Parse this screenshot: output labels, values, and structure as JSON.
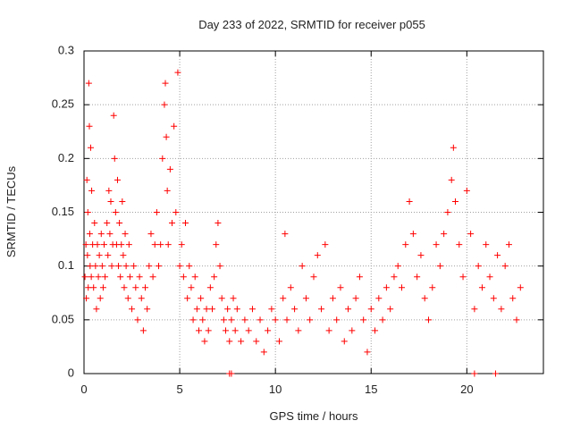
{
  "chart_data": {
    "type": "scatter",
    "title": "Day 233 of 2022, SRMTID for receiver p055",
    "xlabel": "GPS time / hours",
    "ylabel": "SRMTID / TECUs",
    "xlim": [
      0,
      24
    ],
    "ylim": [
      0,
      0.3
    ],
    "x_ticks": [
      0,
      5,
      10,
      15,
      20
    ],
    "x_tick_labels": [
      "0",
      "5",
      "10",
      "15",
      "20"
    ],
    "y_ticks": [
      0,
      0.05,
      0.1,
      0.15,
      0.2,
      0.25,
      0.3
    ],
    "y_tick_labels": [
      "0",
      "0.05",
      "0.1",
      "0.15",
      "0.2",
      "0.25",
      "0.3"
    ],
    "grid": true,
    "marker": "+",
    "color": "#ff0000",
    "series": [
      {
        "name": "SRMTID",
        "points": [
          [
            0.05,
            0.09
          ],
          [
            0.1,
            0.12
          ],
          [
            0.12,
            0.07
          ],
          [
            0.15,
            0.18
          ],
          [
            0.18,
            0.11
          ],
          [
            0.2,
            0.15
          ],
          [
            0.22,
            0.08
          ],
          [
            0.25,
            0.27
          ],
          [
            0.28,
            0.23
          ],
          [
            0.3,
            0.13
          ],
          [
            0.32,
            0.1
          ],
          [
            0.35,
            0.21
          ],
          [
            0.38,
            0.09
          ],
          [
            0.4,
            0.17
          ],
          [
            0.45,
            0.12
          ],
          [
            0.5,
            0.08
          ],
          [
            0.55,
            0.14
          ],
          [
            0.6,
            0.1
          ],
          [
            0.65,
            0.06
          ],
          [
            0.7,
            0.12
          ],
          [
            0.75,
            0.09
          ],
          [
            0.8,
            0.11
          ],
          [
            0.85,
            0.07
          ],
          [
            0.9,
            0.13
          ],
          [
            0.95,
            0.1
          ],
          [
            1.0,
            0.08
          ],
          [
            1.05,
            0.12
          ],
          [
            1.1,
            0.09
          ],
          [
            1.2,
            0.14
          ],
          [
            1.25,
            0.11
          ],
          [
            1.3,
            0.17
          ],
          [
            1.35,
            0.13
          ],
          [
            1.4,
            0.16
          ],
          [
            1.45,
            0.1
          ],
          [
            1.5,
            0.12
          ],
          [
            1.55,
            0.24
          ],
          [
            1.6,
            0.2
          ],
          [
            1.65,
            0.15
          ],
          [
            1.7,
            0.12
          ],
          [
            1.75,
            0.18
          ],
          [
            1.8,
            0.1
          ],
          [
            1.85,
            0.14
          ],
          [
            1.9,
            0.09
          ],
          [
            1.95,
            0.12
          ],
          [
            2.0,
            0.16
          ],
          [
            2.05,
            0.11
          ],
          [
            2.1,
            0.08
          ],
          [
            2.15,
            0.13
          ],
          [
            2.2,
            0.1
          ],
          [
            2.3,
            0.07
          ],
          [
            2.35,
            0.12
          ],
          [
            2.4,
            0.09
          ],
          [
            2.5,
            0.06
          ],
          [
            2.6,
            0.1
          ],
          [
            2.7,
            0.08
          ],
          [
            2.8,
            0.05
          ],
          [
            2.9,
            0.09
          ],
          [
            3.0,
            0.07
          ],
          [
            3.1,
            0.04
          ],
          [
            3.2,
            0.08
          ],
          [
            3.3,
            0.06
          ],
          [
            3.4,
            0.1
          ],
          [
            3.5,
            0.13
          ],
          [
            3.6,
            0.09
          ],
          [
            3.7,
            0.12
          ],
          [
            3.8,
            0.15
          ],
          [
            3.9,
            0.1
          ],
          [
            4.0,
            0.12
          ],
          [
            4.1,
            0.2
          ],
          [
            4.2,
            0.25
          ],
          [
            4.25,
            0.27
          ],
          [
            4.3,
            0.22
          ],
          [
            4.35,
            0.17
          ],
          [
            4.4,
            0.12
          ],
          [
            4.5,
            0.19
          ],
          [
            4.6,
            0.14
          ],
          [
            4.7,
            0.23
          ],
          [
            4.8,
            0.15
          ],
          [
            4.9,
            0.28
          ],
          [
            5.0,
            0.1
          ],
          [
            5.1,
            0.12
          ],
          [
            5.2,
            0.09
          ],
          [
            5.3,
            0.14
          ],
          [
            5.4,
            0.07
          ],
          [
            5.5,
            0.1
          ],
          [
            5.6,
            0.08
          ],
          [
            5.7,
            0.05
          ],
          [
            5.8,
            0.09
          ],
          [
            5.9,
            0.06
          ],
          [
            6.0,
            0.04
          ],
          [
            6.1,
            0.07
          ],
          [
            6.2,
            0.05
          ],
          [
            6.3,
            0.03
          ],
          [
            6.4,
            0.06
          ],
          [
            6.5,
            0.04
          ],
          [
            6.6,
            0.08
          ],
          [
            6.7,
            0.06
          ],
          [
            6.8,
            0.09
          ],
          [
            6.9,
            0.12
          ],
          [
            7.0,
            0.14
          ],
          [
            7.1,
            0.1
          ],
          [
            7.2,
            0.07
          ],
          [
            7.3,
            0.05
          ],
          [
            7.4,
            0.04
          ],
          [
            7.5,
            0.06
          ],
          [
            7.6,
            0.03
          ],
          [
            7.7,
            0.05
          ],
          [
            7.8,
            0.07
          ],
          [
            7.9,
            0.04
          ],
          [
            8.0,
            0.06
          ],
          [
            8.2,
            0.03
          ],
          [
            8.4,
            0.05
          ],
          [
            8.6,
            0.04
          ],
          [
            8.8,
            0.06
          ],
          [
            9.0,
            0.03
          ],
          [
            9.2,
            0.05
          ],
          [
            9.4,
            0.02
          ],
          [
            9.6,
            0.04
          ],
          [
            9.8,
            0.06
          ],
          [
            10.0,
            0.05
          ],
          [
            10.2,
            0.03
          ],
          [
            10.4,
            0.07
          ],
          [
            10.5,
            0.13
          ],
          [
            10.6,
            0.05
          ],
          [
            10.8,
            0.08
          ],
          [
            11.0,
            0.06
          ],
          [
            11.2,
            0.04
          ],
          [
            11.4,
            0.1
          ],
          [
            11.6,
            0.07
          ],
          [
            11.8,
            0.05
          ],
          [
            12.0,
            0.09
          ],
          [
            12.2,
            0.11
          ],
          [
            12.4,
            0.06
          ],
          [
            12.6,
            0.12
          ],
          [
            12.8,
            0.04
          ],
          [
            13.0,
            0.07
          ],
          [
            13.2,
            0.05
          ],
          [
            13.4,
            0.08
          ],
          [
            13.6,
            0.03
          ],
          [
            13.8,
            0.06
          ],
          [
            14.0,
            0.04
          ],
          [
            14.2,
            0.07
          ],
          [
            14.4,
            0.09
          ],
          [
            14.6,
            0.05
          ],
          [
            14.8,
            0.02
          ],
          [
            15.0,
            0.06
          ],
          [
            15.2,
            0.04
          ],
          [
            15.4,
            0.07
          ],
          [
            15.6,
            0.05
          ],
          [
            15.8,
            0.08
          ],
          [
            16.0,
            0.06
          ],
          [
            16.2,
            0.09
          ],
          [
            16.4,
            0.1
          ],
          [
            16.6,
            0.08
          ],
          [
            16.8,
            0.12
          ],
          [
            17.0,
            0.16
          ],
          [
            17.2,
            0.13
          ],
          [
            17.4,
            0.09
          ],
          [
            17.6,
            0.11
          ],
          [
            17.8,
            0.07
          ],
          [
            18.0,
            0.05
          ],
          [
            18.2,
            0.08
          ],
          [
            18.4,
            0.12
          ],
          [
            18.6,
            0.1
          ],
          [
            18.8,
            0.13
          ],
          [
            19.0,
            0.15
          ],
          [
            19.2,
            0.18
          ],
          [
            19.3,
            0.21
          ],
          [
            19.4,
            0.16
          ],
          [
            19.6,
            0.12
          ],
          [
            19.8,
            0.09
          ],
          [
            20.0,
            0.17
          ],
          [
            20.2,
            0.13
          ],
          [
            20.4,
            0.06
          ],
          [
            20.6,
            0.1
          ],
          [
            20.8,
            0.08
          ],
          [
            21.0,
            0.12
          ],
          [
            21.2,
            0.09
          ],
          [
            21.4,
            0.07
          ],
          [
            21.6,
            0.11
          ],
          [
            21.8,
            0.06
          ],
          [
            22.0,
            0.1
          ],
          [
            22.2,
            0.12
          ],
          [
            22.4,
            0.07
          ],
          [
            22.6,
            0.05
          ],
          [
            22.8,
            0.08
          ],
          [
            7.6,
            0.0
          ],
          [
            7.7,
            0.0
          ],
          [
            20.4,
            0.0
          ],
          [
            21.5,
            0.0
          ]
        ]
      }
    ]
  }
}
